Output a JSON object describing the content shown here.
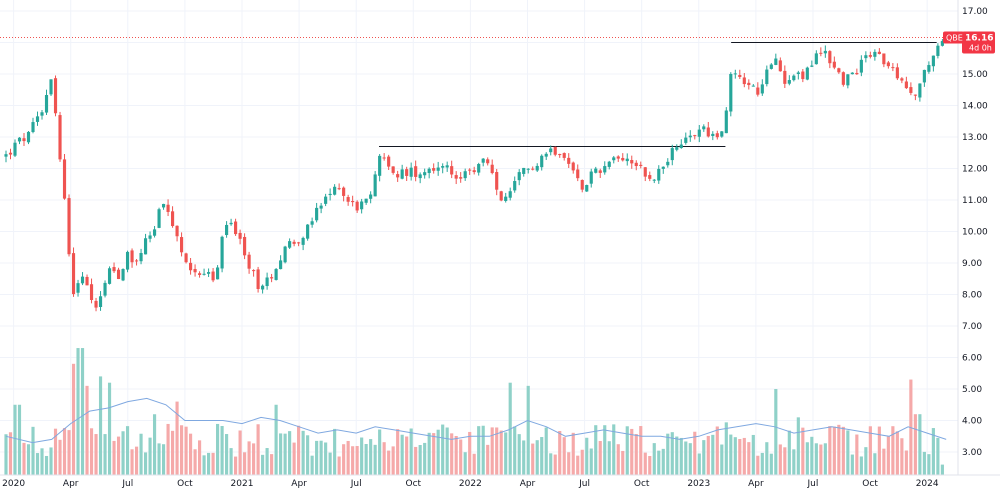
{
  "chart_data": {
    "type": "candlestick",
    "ticker": "QBE",
    "last_price": "16.16",
    "countdown": "4d 0h",
    "colors": {
      "up": "#26a69a",
      "down": "#ef5350",
      "up_volume": "#8fd1c8",
      "down_volume": "#f5a9a9",
      "volume_ma": "#7fa8e0",
      "price_line": "#ef5350",
      "price_label": "#f23645"
    },
    "y_ticks": [
      "3.00",
      "4.00",
      "5.00",
      "6.00",
      "7.00",
      "8.00",
      "9.00",
      "10.00",
      "11.00",
      "12.00",
      "13.00",
      "14.00",
      "15.00",
      "16.00",
      "17.00"
    ],
    "ylim": [
      2.5,
      17.2
    ],
    "x_ticks": [
      {
        "label": "2020",
        "t": 0
      },
      {
        "label": "Apr",
        "t": 3
      },
      {
        "label": "Jul",
        "t": 6
      },
      {
        "label": "Oct",
        "t": 9
      },
      {
        "label": "2021",
        "t": 12
      },
      {
        "label": "Apr",
        "t": 15
      },
      {
        "label": "Jul",
        "t": 18
      },
      {
        "label": "Oct",
        "t": 21
      },
      {
        "label": "2022",
        "t": 24
      },
      {
        "label": "Apr",
        "t": 27
      },
      {
        "label": "Jul",
        "t": 30
      },
      {
        "label": "Oct",
        "t": 33
      },
      {
        "label": "2023",
        "t": 36
      },
      {
        "label": "Apr",
        "t": 39
      },
      {
        "label": "Jul",
        "t": 42
      },
      {
        "label": "Oct",
        "t": 45
      },
      {
        "label": "2024",
        "t": 48
      }
    ],
    "xlim": [
      -0.4,
      49.2
    ],
    "anchors": [
      [
        -0.4,
        12.4
      ],
      [
        0.2,
        12.8
      ],
      [
        0.9,
        13.1
      ],
      [
        1.3,
        13.8
      ],
      [
        1.6,
        14.0
      ],
      [
        1.95,
        15.0
      ],
      [
        2.1,
        14.6
      ],
      [
        2.4,
        12.4
      ],
      [
        2.7,
        11.0
      ],
      [
        3.0,
        8.8
      ],
      [
        3.25,
        7.6
      ],
      [
        3.5,
        8.9
      ],
      [
        3.75,
        8.4
      ],
      [
        4.1,
        7.7
      ],
      [
        4.5,
        7.8
      ],
      [
        5.0,
        8.9
      ],
      [
        5.5,
        8.6
      ],
      [
        6.0,
        9.3
      ],
      [
        6.5,
        9.0
      ],
      [
        7.0,
        10.0
      ],
      [
        7.3,
        9.8
      ],
      [
        7.7,
        10.9
      ],
      [
        8.1,
        10.5
      ],
      [
        8.5,
        10.0
      ],
      [
        9.0,
        8.9
      ],
      [
        9.6,
        8.8
      ],
      [
        10.1,
        8.7
      ],
      [
        10.6,
        8.4
      ],
      [
        11.0,
        9.9
      ],
      [
        11.3,
        10.4
      ],
      [
        11.7,
        10.0
      ],
      [
        12.2,
        9.0
      ],
      [
        12.6,
        8.7
      ],
      [
        13.0,
        8.1
      ],
      [
        13.4,
        8.5
      ],
      [
        13.8,
        8.9
      ],
      [
        14.3,
        9.6
      ],
      [
        14.8,
        9.7
      ],
      [
        15.4,
        10.0
      ],
      [
        15.9,
        10.6
      ],
      [
        16.4,
        11.0
      ],
      [
        16.8,
        11.3
      ],
      [
        17.1,
        11.5
      ],
      [
        17.5,
        11.0
      ],
      [
        18.0,
        10.8
      ],
      [
        18.6,
        10.9
      ],
      [
        19.0,
        11.7
      ],
      [
        19.2,
        12.6
      ],
      [
        19.6,
        12.0
      ],
      [
        20.1,
        11.8
      ],
      [
        20.7,
        11.9
      ],
      [
        21.2,
        11.9
      ],
      [
        21.7,
        12.0
      ],
      [
        22.3,
        12.1
      ],
      [
        22.9,
        11.9
      ],
      [
        23.5,
        11.7
      ],
      [
        24.0,
        11.8
      ],
      [
        24.6,
        12.3
      ],
      [
        25.0,
        12.0
      ],
      [
        25.5,
        11.1
      ],
      [
        26.0,
        11.0
      ],
      [
        26.6,
        11.8
      ],
      [
        27.1,
        12.0
      ],
      [
        27.6,
        12.3
      ],
      [
        28.1,
        12.6
      ],
      [
        28.6,
        12.6
      ],
      [
        29.0,
        12.2
      ],
      [
        29.4,
        12.0
      ],
      [
        29.8,
        11.4
      ],
      [
        30.3,
        11.8
      ],
      [
        30.8,
        12.0
      ],
      [
        31.3,
        12.2
      ],
      [
        31.8,
        12.4
      ],
      [
        32.4,
        12.3
      ],
      [
        32.9,
        12.1
      ],
      [
        33.4,
        11.6
      ],
      [
        33.9,
        11.9
      ],
      [
        34.4,
        12.4
      ],
      [
        34.9,
        12.6
      ],
      [
        35.3,
        12.9
      ],
      [
        35.8,
        13.1
      ],
      [
        36.3,
        13.3
      ],
      [
        36.8,
        13.0
      ],
      [
        37.1,
        12.9
      ],
      [
        37.5,
        14.0
      ],
      [
        37.7,
        15.1
      ],
      [
        38.2,
        14.9
      ],
      [
        38.7,
        14.6
      ],
      [
        39.2,
        14.4
      ],
      [
        39.7,
        15.2
      ],
      [
        40.1,
        15.4
      ],
      [
        40.5,
        14.8
      ],
      [
        41.0,
        15.1
      ],
      [
        41.5,
        14.9
      ],
      [
        42.1,
        15.5
      ],
      [
        42.6,
        15.8
      ],
      [
        43.1,
        15.2
      ],
      [
        43.6,
        14.8
      ],
      [
        44.2,
        15.0
      ],
      [
        44.7,
        15.6
      ],
      [
        45.3,
        15.8
      ],
      [
        45.8,
        15.3
      ],
      [
        46.3,
        15.0
      ],
      [
        46.8,
        14.6
      ],
      [
        47.2,
        14.2
      ],
      [
        47.6,
        14.8
      ],
      [
        48.0,
        15.1
      ],
      [
        48.4,
        15.7
      ],
      [
        48.8,
        16.16
      ]
    ],
    "resistance_lines": [
      {
        "t1": 19.2,
        "t2": 37.4,
        "price": 12.7
      },
      {
        "t1": 37.7,
        "t2": 48.5,
        "price": 16.0
      }
    ],
    "volume": {
      "ylim_top_price": 6.5,
      "baseline_price": 2.5,
      "spikes": [
        {
          "t": 3.5,
          "price": 6.3
        },
        {
          "t": 3.2,
          "price": 5.8
        },
        {
          "t": 3.8,
          "price": 5.1
        },
        {
          "t": 4.6,
          "price": 5.4
        },
        {
          "t": 5.0,
          "price": 5.2
        },
        {
          "t": 8.6,
          "price": 4.6
        },
        {
          "t": 26.0,
          "price": 5.2
        },
        {
          "t": 27.0,
          "price": 5.1
        },
        {
          "t": 40.0,
          "price": 5.0
        },
        {
          "t": 47.1,
          "price": 5.3
        },
        {
          "t": 0.2,
          "price": 4.5
        },
        {
          "t": 13.7,
          "price": 4.5
        },
        {
          "t": 47.5,
          "price": 4.2
        }
      ],
      "ma": [
        [
          -0.4,
          3.5
        ],
        [
          1.0,
          3.3
        ],
        [
          2.0,
          3.4
        ],
        [
          3.0,
          3.9
        ],
        [
          4.0,
          4.3
        ],
        [
          5.0,
          4.4
        ],
        [
          6.0,
          4.6
        ],
        [
          7.0,
          4.7
        ],
        [
          8.0,
          4.5
        ],
        [
          9.0,
          4.0
        ],
        [
          10.0,
          4.0
        ],
        [
          11.0,
          4.0
        ],
        [
          12.0,
          3.9
        ],
        [
          13.0,
          4.1
        ],
        [
          14.0,
          4.0
        ],
        [
          15.0,
          3.8
        ],
        [
          16.0,
          3.6
        ],
        [
          17.0,
          3.7
        ],
        [
          18.0,
          3.6
        ],
        [
          19.0,
          3.8
        ],
        [
          20.0,
          3.7
        ],
        [
          21.0,
          3.6
        ],
        [
          22.0,
          3.5
        ],
        [
          23.0,
          3.4
        ],
        [
          24.0,
          3.5
        ],
        [
          25.0,
          3.5
        ],
        [
          26.0,
          3.7
        ],
        [
          27.0,
          4.0
        ],
        [
          28.0,
          3.8
        ],
        [
          29.0,
          3.5
        ],
        [
          30.0,
          3.6
        ],
        [
          31.0,
          3.7
        ],
        [
          32.0,
          3.6
        ],
        [
          33.0,
          3.5
        ],
        [
          34.0,
          3.5
        ],
        [
          35.0,
          3.4
        ],
        [
          36.0,
          3.5
        ],
        [
          37.0,
          3.7
        ],
        [
          38.0,
          3.8
        ],
        [
          39.0,
          3.9
        ],
        [
          40.0,
          3.8
        ],
        [
          41.0,
          3.6
        ],
        [
          42.0,
          3.7
        ],
        [
          43.0,
          3.8
        ],
        [
          44.0,
          3.7
        ],
        [
          45.0,
          3.6
        ],
        [
          46.0,
          3.5
        ],
        [
          47.0,
          3.8
        ],
        [
          48.0,
          3.6
        ],
        [
          49.0,
          3.4
        ]
      ]
    }
  }
}
